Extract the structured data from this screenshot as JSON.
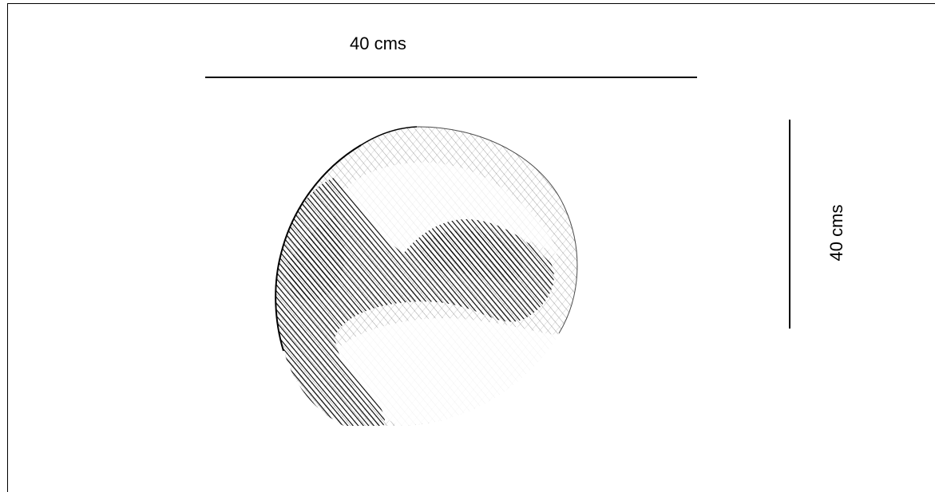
{
  "dimensions": {
    "horizontal_label": "40 cms",
    "vertical_label": "40 cms"
  },
  "colors": {
    "ink": "#000000",
    "background": "#ffffff"
  }
}
